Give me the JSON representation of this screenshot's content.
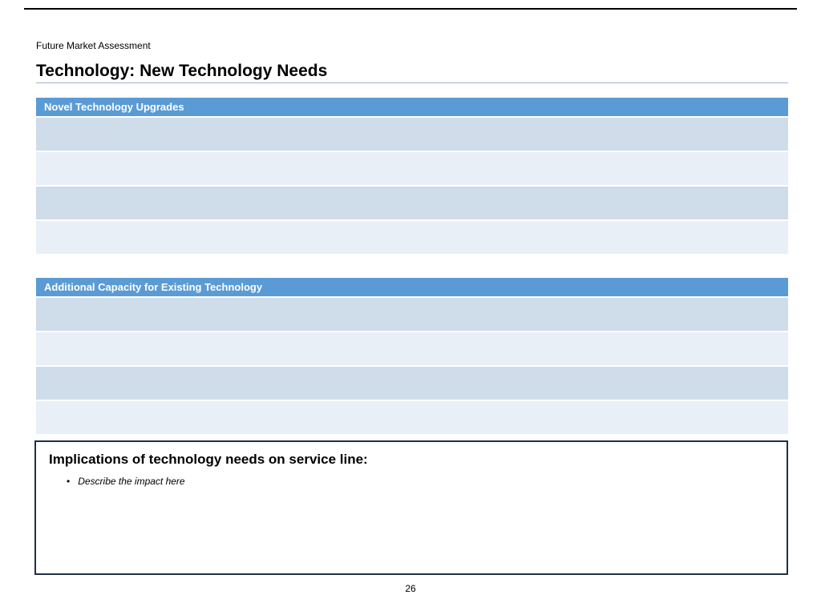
{
  "slide": {
    "eyebrow": "Future Market Assessment",
    "title": "Technology: New Technology Needs",
    "page_number": "26"
  },
  "tables": [
    {
      "header": "Novel Technology Upgrades",
      "rows": [
        "",
        "",
        "",
        ""
      ]
    },
    {
      "header": "Additional Capacity for Existing Technology",
      "rows": [
        "",
        "",
        "",
        ""
      ]
    }
  ],
  "implications": {
    "heading": "Implications of technology needs on service line:",
    "bullets": [
      "Describe the impact here"
    ]
  },
  "colors": {
    "header_blue": "#5b9bd5",
    "row_dark": "#cfdce9",
    "row_light": "#e9eff6",
    "title_rule": "#95b3d7",
    "box_border": "#1f3045"
  }
}
